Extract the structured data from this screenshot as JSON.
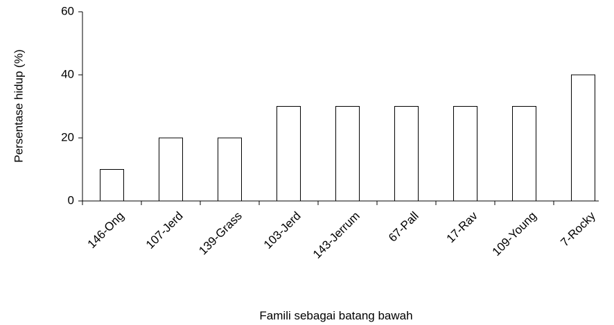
{
  "chart_data": {
    "type": "bar",
    "categories": [
      "146-Ong",
      "107-Jerd",
      "139-Grass",
      "103-Jerd",
      "143-Jerrum",
      "67-Pall",
      "17-Rav",
      "109-Young",
      "7-Rocky"
    ],
    "values": [
      10,
      20,
      20,
      30,
      30,
      30,
      30,
      30,
      40
    ],
    "color": "#ffffff",
    "ylim": [
      0,
      60
    ],
    "yticks": [
      0,
      20,
      40,
      60
    ],
    "y_label": "Persentase hidup (%)",
    "x_label": "Famili sebagai batang bawah",
    "grid": false
  }
}
